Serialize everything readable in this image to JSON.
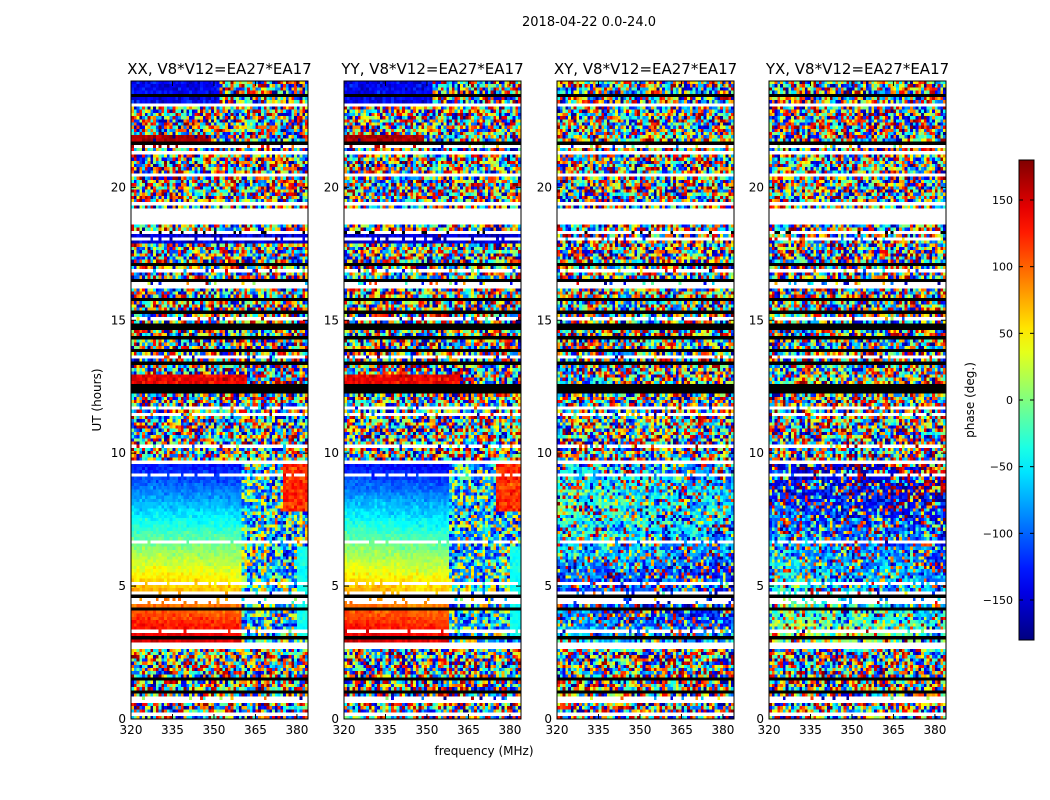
{
  "suptitle": "2018-04-22 0.0-24.0",
  "chart_data": {
    "type": "heatmap",
    "xlabel": "frequency (MHz)",
    "ylabel": "UT (hours)",
    "xlim": [
      320,
      384
    ],
    "ylim": [
      0,
      24
    ],
    "xticks": [
      320,
      335,
      350,
      365,
      380
    ],
    "yticks": [
      0,
      5,
      10,
      15,
      20
    ],
    "panels": [
      {
        "title": "XX, V8*V12=EA27*EA17",
        "pol": "XX"
      },
      {
        "title": "YY, V8*V12=EA27*EA17",
        "pol": "YY"
      },
      {
        "title": "XY, V8*V12=EA27*EA17",
        "pol": "XY"
      },
      {
        "title": "YX, V8*V12=EA27*EA17",
        "pol": "YX"
      }
    ],
    "colorbar": {
      "label": "phase (deg.)",
      "range": [
        -180,
        180
      ],
      "ticks": [
        150,
        100,
        50,
        0,
        -50,
        -100,
        -150
      ],
      "tick_labels": [
        "150",
        "100",
        "50",
        "0",
        "−50",
        "−100",
        "−150"
      ],
      "colormap": "jet"
    },
    "flagged_color": "#ffffff"
  }
}
